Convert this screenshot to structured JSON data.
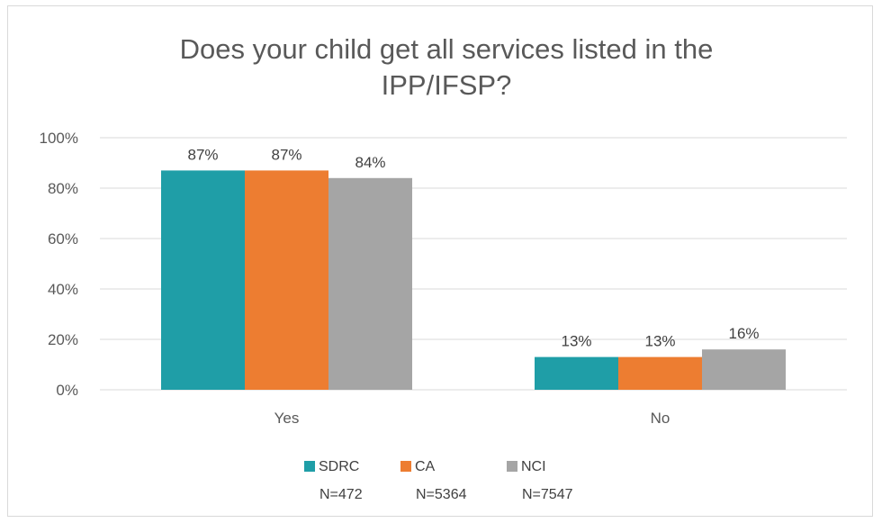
{
  "chart_data": {
    "type": "bar",
    "title_lines": [
      "Does your child get all services listed in the",
      "IPP/IFSP?"
    ],
    "categories": [
      "Yes",
      "No"
    ],
    "series": [
      {
        "name": "SDRC",
        "n_label": "N=472",
        "values": [
          87,
          13
        ],
        "labels": [
          "87%",
          "13%"
        ],
        "color": "#1f9ea7"
      },
      {
        "name": "CA",
        "n_label": "N=5364",
        "values": [
          87,
          13
        ],
        "labels": [
          "87%",
          "13%"
        ],
        "color": "#ed7d31"
      },
      {
        "name": "NCI",
        "n_label": "N=7547",
        "values": [
          84,
          16
        ],
        "labels": [
          "84%",
          "16%"
        ],
        "color": "#a5a5a5"
      }
    ],
    "ylim": [
      0,
      100
    ],
    "yticks": [
      0,
      20,
      40,
      60,
      80,
      100
    ],
    "ytick_labels": [
      "0%",
      "20%",
      "40%",
      "60%",
      "80%",
      "100%"
    ],
    "grid": true,
    "legend_position": "bottom",
    "xlabel": "",
    "ylabel": ""
  }
}
